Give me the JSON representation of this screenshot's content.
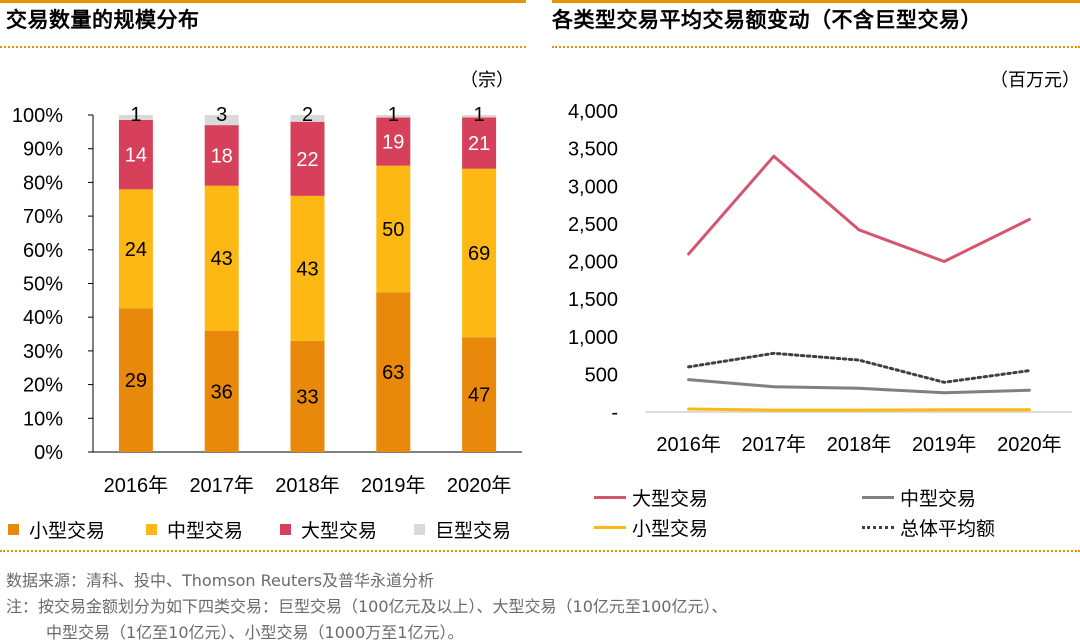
{
  "left_panel": {
    "title": "交易数量的规模分布",
    "unit": "（宗）",
    "legend": [
      {
        "label": "小型交易",
        "color": "#E8890C"
      },
      {
        "label": "中型交易",
        "color": "#FDB813"
      },
      {
        "label": "大型交易",
        "color": "#D6405A"
      },
      {
        "label": "巨型交易",
        "color": "#D9D9D9"
      }
    ]
  },
  "right_panel": {
    "title": "各类型交易平均交易额变动（不含巨型交易）",
    "unit": "（百万元）",
    "legend": [
      {
        "label": "大型交易",
        "color": "#D6556E",
        "style": "solid"
      },
      {
        "label": "中型交易",
        "color": "#808080",
        "style": "solid"
      },
      {
        "label": "小型交易",
        "color": "#FDB813",
        "style": "solid"
      },
      {
        "label": "总体平均额",
        "color": "#404040",
        "style": "dotted"
      }
    ]
  },
  "footer": {
    "source": "数据来源：清科、投中、Thomson Reuters及普华永道分析",
    "note1": "注：按交易金额划分为如下四类交易：巨型交易（100亿元及以上）、大型交易（10亿元至100亿元）、",
    "note2": "中型交易（1亿至10亿元）、小型交易（1000万至1亿元）。"
  },
  "chart_data": [
    {
      "type": "bar",
      "stacked": "percent",
      "title": "交易数量的规模分布",
      "unit": "（宗）",
      "categories": [
        "2016年",
        "2017年",
        "2018年",
        "2019年",
        "2020年"
      ],
      "yticks": [
        "0%",
        "10%",
        "20%",
        "30%",
        "40%",
        "50%",
        "60%",
        "70%",
        "80%",
        "90%",
        "100%"
      ],
      "ylim": [
        0,
        100
      ],
      "series": [
        {
          "name": "小型交易",
          "color": "#E8890C",
          "label_color": "#000000",
          "values": [
            29,
            36,
            33,
            63,
            47
          ]
        },
        {
          "name": "中型交易",
          "color": "#FDB813",
          "label_color": "#000000",
          "values": [
            24,
            43,
            43,
            50,
            69
          ]
        },
        {
          "name": "大型交易",
          "color": "#D6405A",
          "label_color": "#ffffff",
          "values": [
            14,
            18,
            22,
            19,
            21
          ]
        },
        {
          "name": "巨型交易",
          "color": "#D9D9D9",
          "label_color": "#000000",
          "values": [
            1,
            3,
            2,
            1,
            1
          ]
        }
      ]
    },
    {
      "type": "line",
      "title": "各类型交易平均交易额变动（不含巨型交易）",
      "unit": "（百万元）",
      "categories": [
        "2016年",
        "2017年",
        "2018年",
        "2019年",
        "2020年"
      ],
      "yticks": [
        "-",
        "500",
        "1,000",
        "1,500",
        "2,000",
        "2,500",
        "3,000",
        "3,500",
        "4,000"
      ],
      "ylim": [
        0,
        4000
      ],
      "grid": false,
      "series": [
        {
          "name": "大型交易",
          "color": "#D6556E",
          "style": "solid",
          "values": [
            2100,
            3400,
            2420,
            2000,
            2560
          ]
        },
        {
          "name": "中型交易",
          "color": "#808080",
          "style": "solid",
          "values": [
            430,
            335,
            315,
            255,
            290
          ]
        },
        {
          "name": "小型交易",
          "color": "#FDB813",
          "style": "solid",
          "values": [
            40,
            25,
            25,
            30,
            30
          ]
        },
        {
          "name": "总体平均额",
          "color": "#404040",
          "style": "dotted",
          "values": [
            600,
            780,
            690,
            395,
            550
          ]
        }
      ]
    }
  ]
}
